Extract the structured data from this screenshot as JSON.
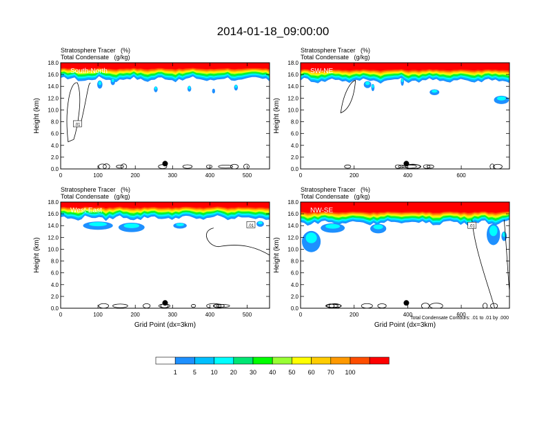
{
  "figure": {
    "title": "2014-01-18_09:00:00",
    "footnote": "Total Condensate Contours: .01 to .01 by .000"
  },
  "colors": {
    "levels": [
      {
        "label": "",
        "color": "#ffffff"
      },
      {
        "label": "1",
        "color": "#1e90ff"
      },
      {
        "label": "5",
        "color": "#00bfff"
      },
      {
        "label": "10",
        "color": "#00ffff"
      },
      {
        "label": "20",
        "color": "#00e673"
      },
      {
        "label": "30",
        "color": "#00ff00"
      },
      {
        "label": "40",
        "color": "#99ff33"
      },
      {
        "label": "50",
        "color": "#ffff00"
      },
      {
        "label": "60",
        "color": "#ffcc00"
      },
      {
        "label": "70",
        "color": "#ff9900"
      },
      {
        "label": "100",
        "color": "#ff4d00"
      },
      {
        "label": "",
        "color": "#ff0000"
      }
    ]
  },
  "chart_data": [
    {
      "type": "heatmap",
      "field_label": "Stratosphere Tracer   (%)",
      "contour_label": "Total Condensate   (g/kg)",
      "cross_section": "South-North",
      "ylabel": "Height (km)",
      "xlabel": "",
      "xlim": [
        0,
        560
      ],
      "ylim": [
        0,
        18
      ],
      "xticks": [
        0,
        100,
        200,
        300,
        400,
        500
      ],
      "yticks": [
        "0.0",
        "2.0",
        "4.0",
        "6.0",
        "8.0",
        "10.0",
        "12.0",
        "14.0",
        "16.0",
        "18.0"
      ],
      "contour_value_label": ".01",
      "marker_x": 280,
      "tracer_base_km": 15.2,
      "blobs": [
        [
          105,
          14.3,
          7,
          0.7
        ],
        [
          140,
          14.8,
          6,
          0.6
        ],
        [
          255,
          13.5,
          5,
          0.5
        ],
        [
          345,
          13.6,
          5,
          0.5
        ],
        [
          410,
          13.2,
          4,
          0.4
        ],
        [
          470,
          13.8,
          5,
          0.5
        ]
      ]
    },
    {
      "type": "heatmap",
      "field_label": "Stratosphere Tracer   (%)",
      "contour_label": "Total Condensate   (g/kg)",
      "cross_section": "SW-NE",
      "ylabel": "Height (km)",
      "xlabel": "",
      "xlim": [
        0,
        780
      ],
      "ylim": [
        0,
        18
      ],
      "xticks": [
        0,
        200,
        400,
        600
      ],
      "yticks": [
        "0.0",
        "2.0",
        "4.0",
        "6.0",
        "8.0",
        "10.0",
        "12.0",
        "14.0",
        "16.0",
        "18.0"
      ],
      "contour_value_label": "",
      "marker_x": 395,
      "tracer_base_km": 15.0,
      "blobs": [
        [
          250,
          14.3,
          14,
          0.6
        ],
        [
          270,
          13.8,
          6,
          0.6
        ],
        [
          380,
          14.8,
          6,
          0.7
        ],
        [
          500,
          13.0,
          18,
          0.5
        ],
        [
          750,
          11.7,
          28,
          0.7
        ]
      ]
    },
    {
      "type": "heatmap",
      "field_label": "Stratosphere Tracer   (%)",
      "contour_label": "Total Condensate   (g/kg)",
      "cross_section": "West-East",
      "ylabel": "Height (km)",
      "xlabel": "Grid Point (dx=3km)",
      "xlim": [
        0,
        560
      ],
      "ylim": [
        0,
        18
      ],
      "xticks": [
        0,
        100,
        200,
        300,
        400,
        500
      ],
      "yticks": [
        "0.0",
        "2.0",
        "4.0",
        "6.0",
        "8.0",
        "10.0",
        "12.0",
        "14.0",
        "16.0",
        "18.0"
      ],
      "contour_value_label": ".01",
      "marker_x": 280,
      "tracer_base_km": 15.3,
      "blobs": [
        [
          100,
          14.0,
          40,
          0.7
        ],
        [
          190,
          13.7,
          35,
          0.8
        ],
        [
          320,
          14.0,
          18,
          0.5
        ],
        [
          535,
          14.3,
          10,
          0.5
        ]
      ]
    },
    {
      "type": "heatmap",
      "field_label": "Stratosphere Tracer   (%)",
      "contour_label": "Total Condensate   (g/kg)",
      "cross_section": "NW-SE",
      "ylabel": "Height (km)",
      "xlabel": "Grid Point (dx=3km)",
      "xlim": [
        0,
        780
      ],
      "ylim": [
        0,
        18
      ],
      "xticks": [
        0,
        200,
        400,
        600
      ],
      "yticks": [
        "0.0",
        "2.0",
        "4.0",
        "6.0",
        "8.0",
        "10.0",
        "12.0",
        "14.0",
        "16.0",
        "18.0"
      ],
      "contour_value_label": ".01",
      "marker_x": 395,
      "tracer_base_km": 14.5,
      "blobs": [
        [
          40,
          11.3,
          35,
          1.8
        ],
        [
          120,
          13.6,
          45,
          0.8
        ],
        [
          290,
          13.5,
          30,
          0.8
        ],
        [
          720,
          12.5,
          25,
          1.8
        ],
        [
          760,
          12.2,
          10,
          0.8
        ]
      ]
    }
  ]
}
